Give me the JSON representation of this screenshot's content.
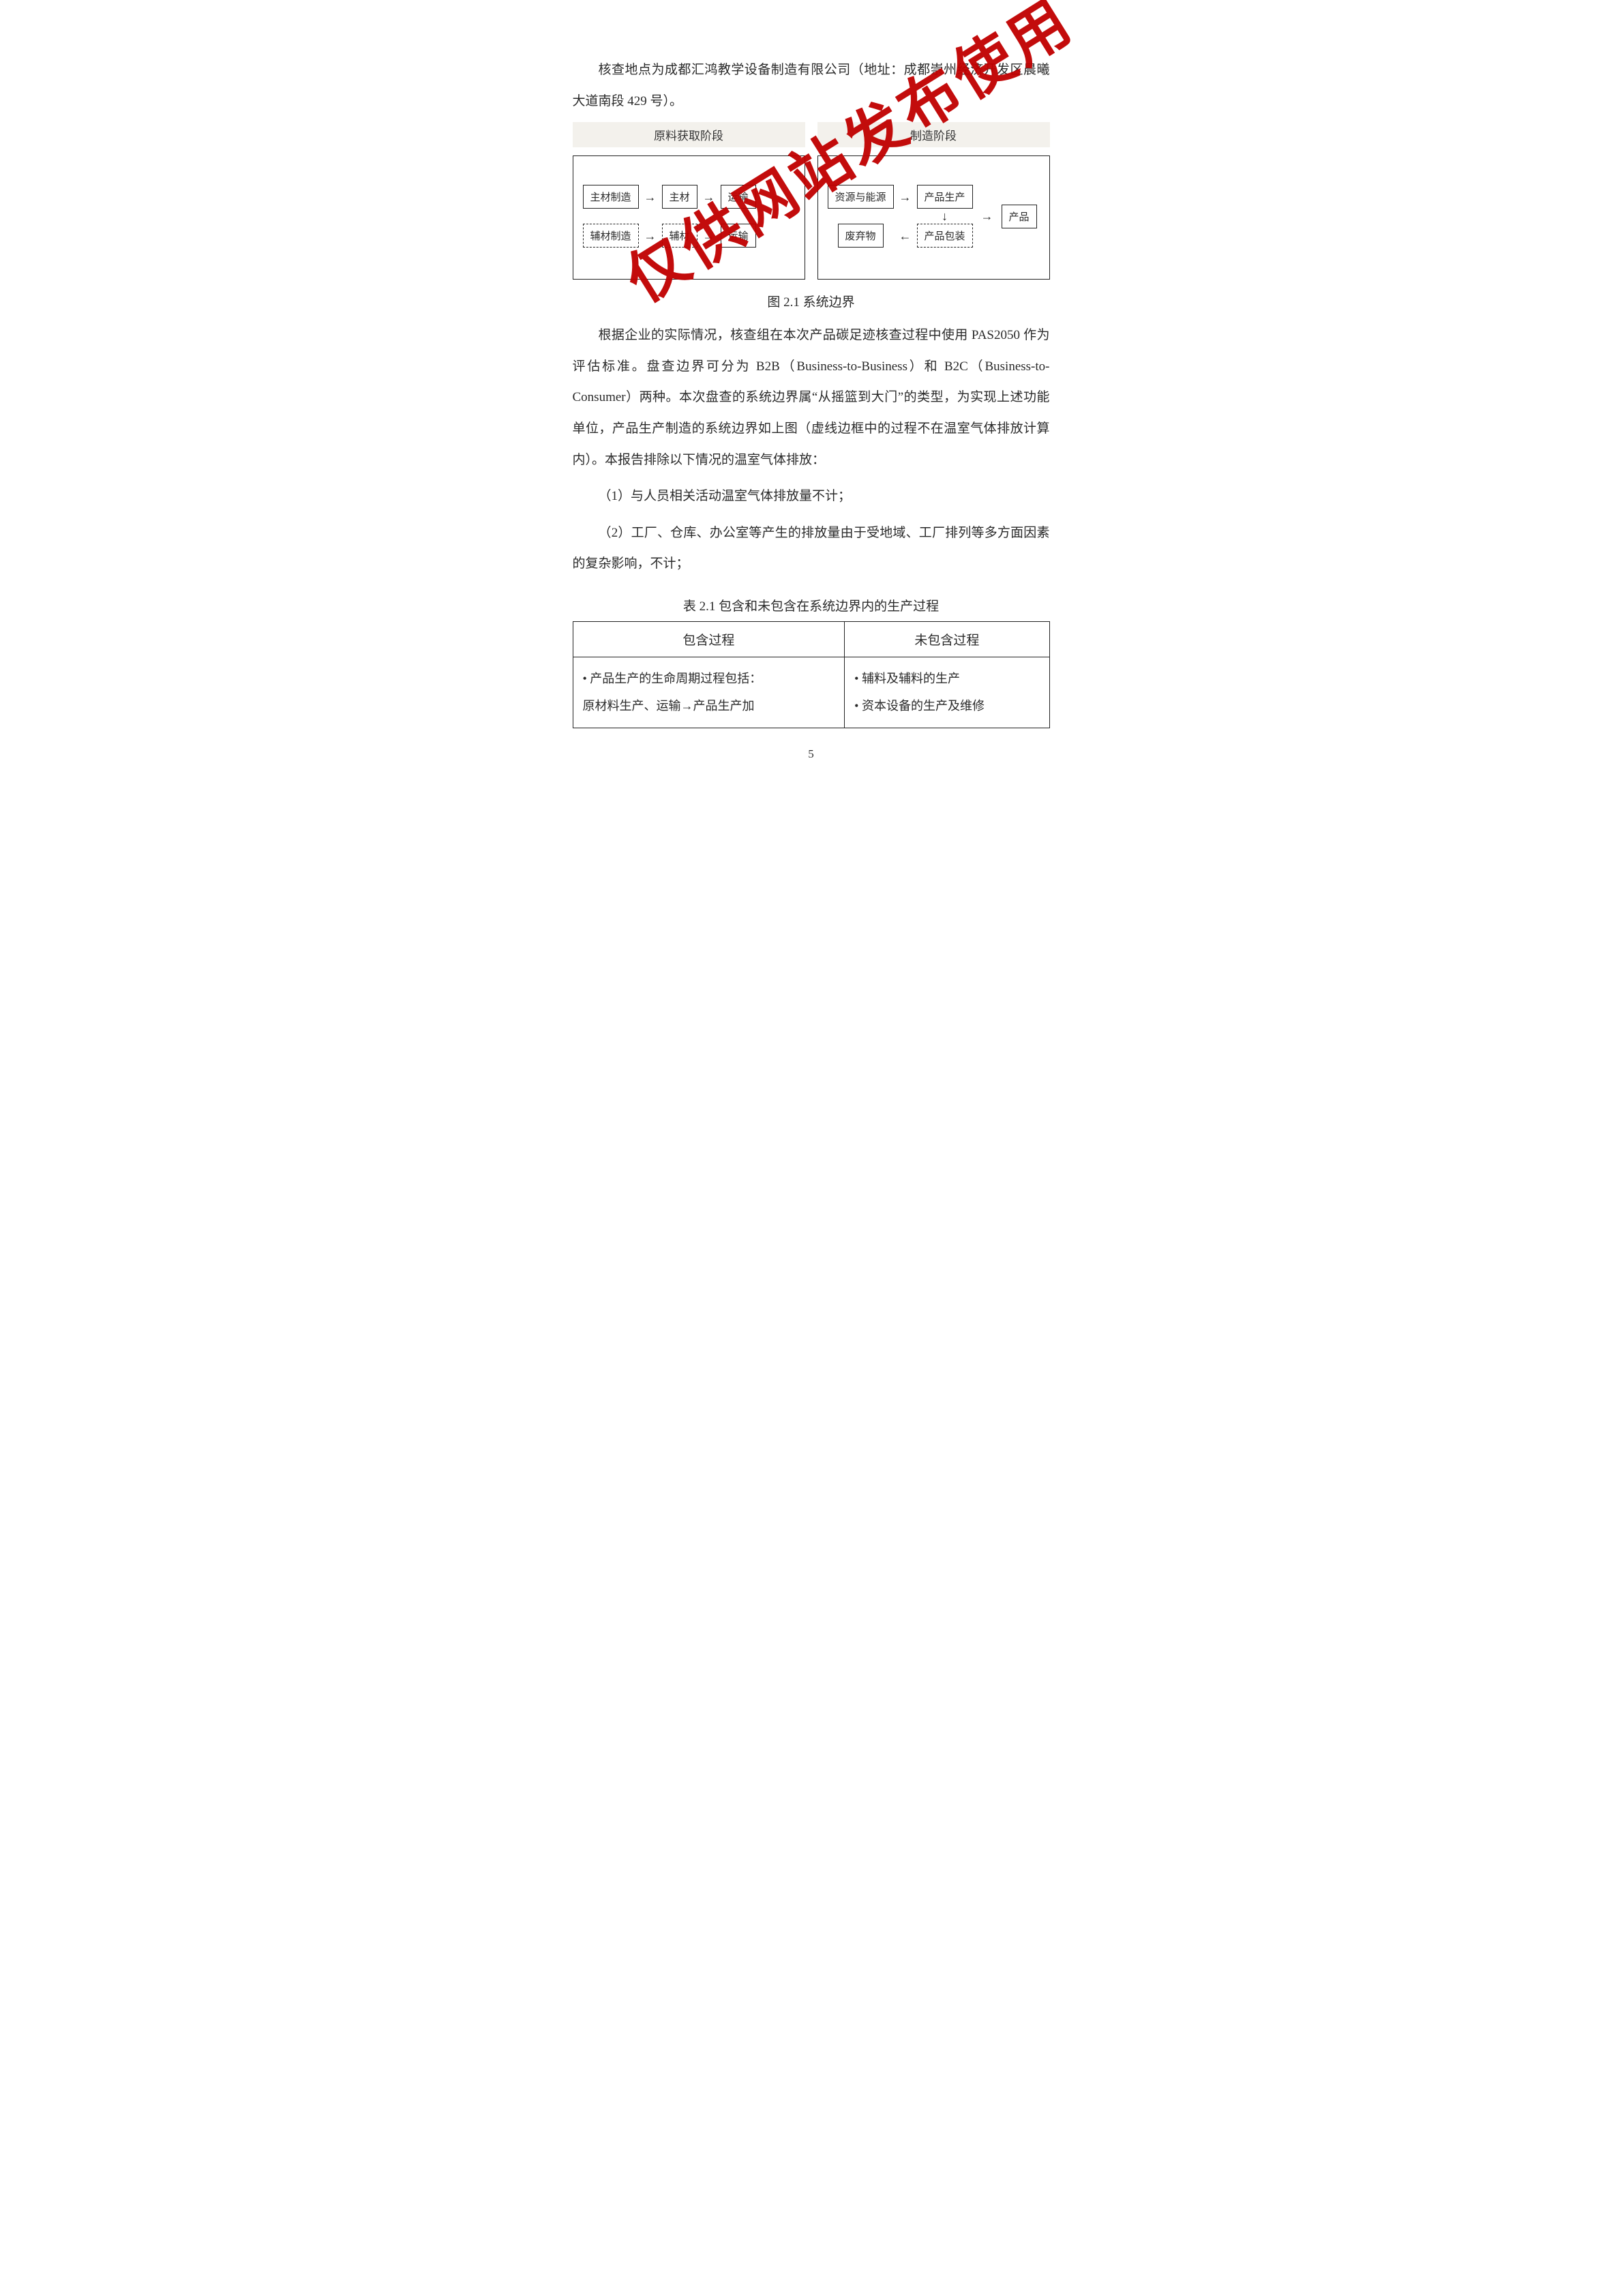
{
  "para1": "核查地点为成都汇鸿教学设备制造有限公司（地址：成都崇州经济开发区晨曦大道南段 429 号）。",
  "diagram": {
    "stage1_title": "原料获取阶段",
    "stage2_title": "制造阶段",
    "s1r1": {
      "n1": "主材制造",
      "n2": "主材",
      "n3": "运输"
    },
    "s1r2": {
      "n1": "辅材制造",
      "n2": "辅材",
      "n3": "运输"
    },
    "s2": {
      "a": "资源与能源",
      "b": "产品生产",
      "c": "产品包装",
      "d": "废弃物",
      "e": "产品"
    },
    "arrow_right": "→",
    "arrow_left": "←",
    "arrow_down": "↓"
  },
  "fig_caption": "图 2.1  系统边界",
  "para2": "根据企业的实际情况，核查组在本次产品碳足迹核查过程中使用 PAS2050 作为评估标准。盘查边界可分为 B2B（Business-to-Business）和 B2C（Business-to-Consumer）两种。本次盘查的系统边界属“从摇篮到大门”的类型，为实现上述功能单位，产品生产制造的系统边界如上图（虚线边框中的过程不在温室气体排放计算内）。本报告排除以下情况的温室气体排放：",
  "item1": "（1）与人员相关活动温室气体排放量不计；",
  "item2": "（2）工厂、仓库、办公室等产生的排放量由于受地域、工厂排列等多方面因素的复杂影响，不计；",
  "table_caption": "表 2.1 包含和未包含在系统边界内的生产过程",
  "table": {
    "h1": "包含过程",
    "h2": "未包含过程",
    "c1l1": "• 产品生产的生命周期过程包括：",
    "c1l2": "原材料生产、运输→产品生产加",
    "c2l1": "• 辅料及辅料的生产",
    "c2l2": "• 资本设备的生产及维修"
  },
  "page_number": "5",
  "watermark": "仅供网站发布使用"
}
